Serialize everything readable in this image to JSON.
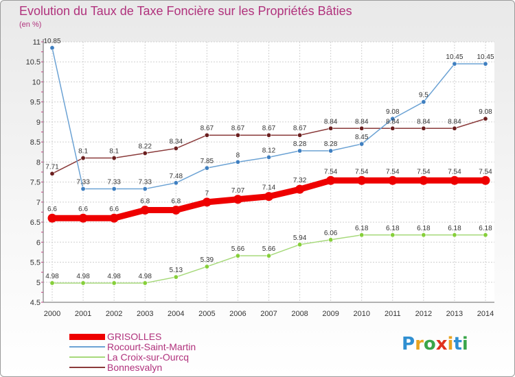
{
  "title": "Evolution du Taux de Taxe Foncière sur les Propriétés Bâties",
  "subtitle": "(en %)",
  "logo": {
    "letters": [
      "P",
      "r",
      "o",
      "x",
      "i",
      "t",
      "i"
    ],
    "colors": [
      "#2f8fd1",
      "#e8a320",
      "#3aa64a",
      "#e0321e",
      "#e8a320",
      "#2f8fd1",
      "#3aa64a"
    ]
  },
  "chart_data": {
    "type": "line",
    "title": "Evolution du Taux de Taxe Foncière sur les Propriétés Bâties",
    "ylabel": "(en %)",
    "xlabel": "",
    "x": [
      "2000",
      "2001",
      "2002",
      "2003",
      "2004",
      "2005",
      "2006",
      "2007",
      "2008",
      "2009",
      "2010",
      "2011",
      "2012",
      "2013",
      "2014"
    ],
    "ylim": [
      4.5,
      11
    ],
    "yticks": [
      "4.5",
      "5",
      "5.5",
      "6",
      "6.5",
      "7",
      "7.5",
      "8",
      "8.5",
      "9",
      "9.5",
      "10",
      "10.5",
      "11"
    ],
    "grid": true,
    "series": [
      {
        "name": "GRISOLLES",
        "color": "#ee0000",
        "point_color": "#ee0000",
        "width": 9,
        "values": [
          6.6,
          6.6,
          6.6,
          6.8,
          6.8,
          7,
          7.07,
          7.14,
          7.32,
          7.54,
          7.54,
          7.54,
          7.54,
          7.54,
          7.54
        ],
        "labels": [
          "6.6",
          "6.6",
          "6.6",
          "6.8",
          "6.8",
          "7",
          "7.07",
          "7.14",
          "7.32",
          "7.54",
          "7.54",
          "7.54",
          "7.54",
          "7.54",
          "7.54"
        ]
      },
      {
        "name": "Rocourt-Saint-Martin",
        "color": "#6ba2d4",
        "point_color": "#3f7fc0",
        "width": 1.5,
        "values": [
          10.85,
          7.33,
          7.33,
          7.33,
          7.48,
          7.85,
          8,
          8.12,
          8.28,
          8.28,
          8.45,
          9.08,
          9.5,
          10.45,
          10.45
        ],
        "labels": [
          "10.85",
          "7.33",
          "7.33",
          "7.33",
          "7.48",
          "7.85",
          "8",
          "8.12",
          "8.28",
          "8.28",
          "8.45",
          "9.08",
          "9.5",
          "10.45",
          "10.45"
        ]
      },
      {
        "name": "La Croix-sur-Ourcq",
        "color": "#a6d97a",
        "point_color": "#86cf3a",
        "width": 1.5,
        "values": [
          4.98,
          4.98,
          4.98,
          4.98,
          5.13,
          5.39,
          5.66,
          5.66,
          5.94,
          6.06,
          6.18,
          6.18,
          6.18,
          6.18,
          6.18
        ],
        "labels": [
          "4.98",
          "4.98",
          "4.98",
          "4.98",
          "5.13",
          "5.39",
          "5.66",
          "5.66",
          "5.94",
          "6.06",
          "6.18",
          "6.18",
          "6.18",
          "6.18",
          "6.18"
        ]
      },
      {
        "name": "Bonnesvalyn",
        "color": "#8a3a3a",
        "point_color": "#6b1f1f",
        "width": 1.5,
        "values": [
          7.71,
          8.1,
          8.1,
          8.22,
          8.34,
          8.67,
          8.67,
          8.67,
          8.67,
          8.84,
          8.84,
          8.84,
          8.84,
          8.84,
          9.08
        ],
        "labels": [
          "7.71",
          "8.1",
          "8.1",
          "8.22",
          "8.34",
          "8.67",
          "8.67",
          "8.67",
          "8.67",
          "8.84",
          "8.84",
          "8.84",
          "8.84",
          "8.84",
          "9.08"
        ]
      }
    ],
    "legend": [
      "GRISOLLES",
      "Rocourt-Saint-Martin",
      "La Croix-sur-Ourcq",
      "Bonnesvalyn"
    ],
    "legend_position": "bottom-left"
  }
}
